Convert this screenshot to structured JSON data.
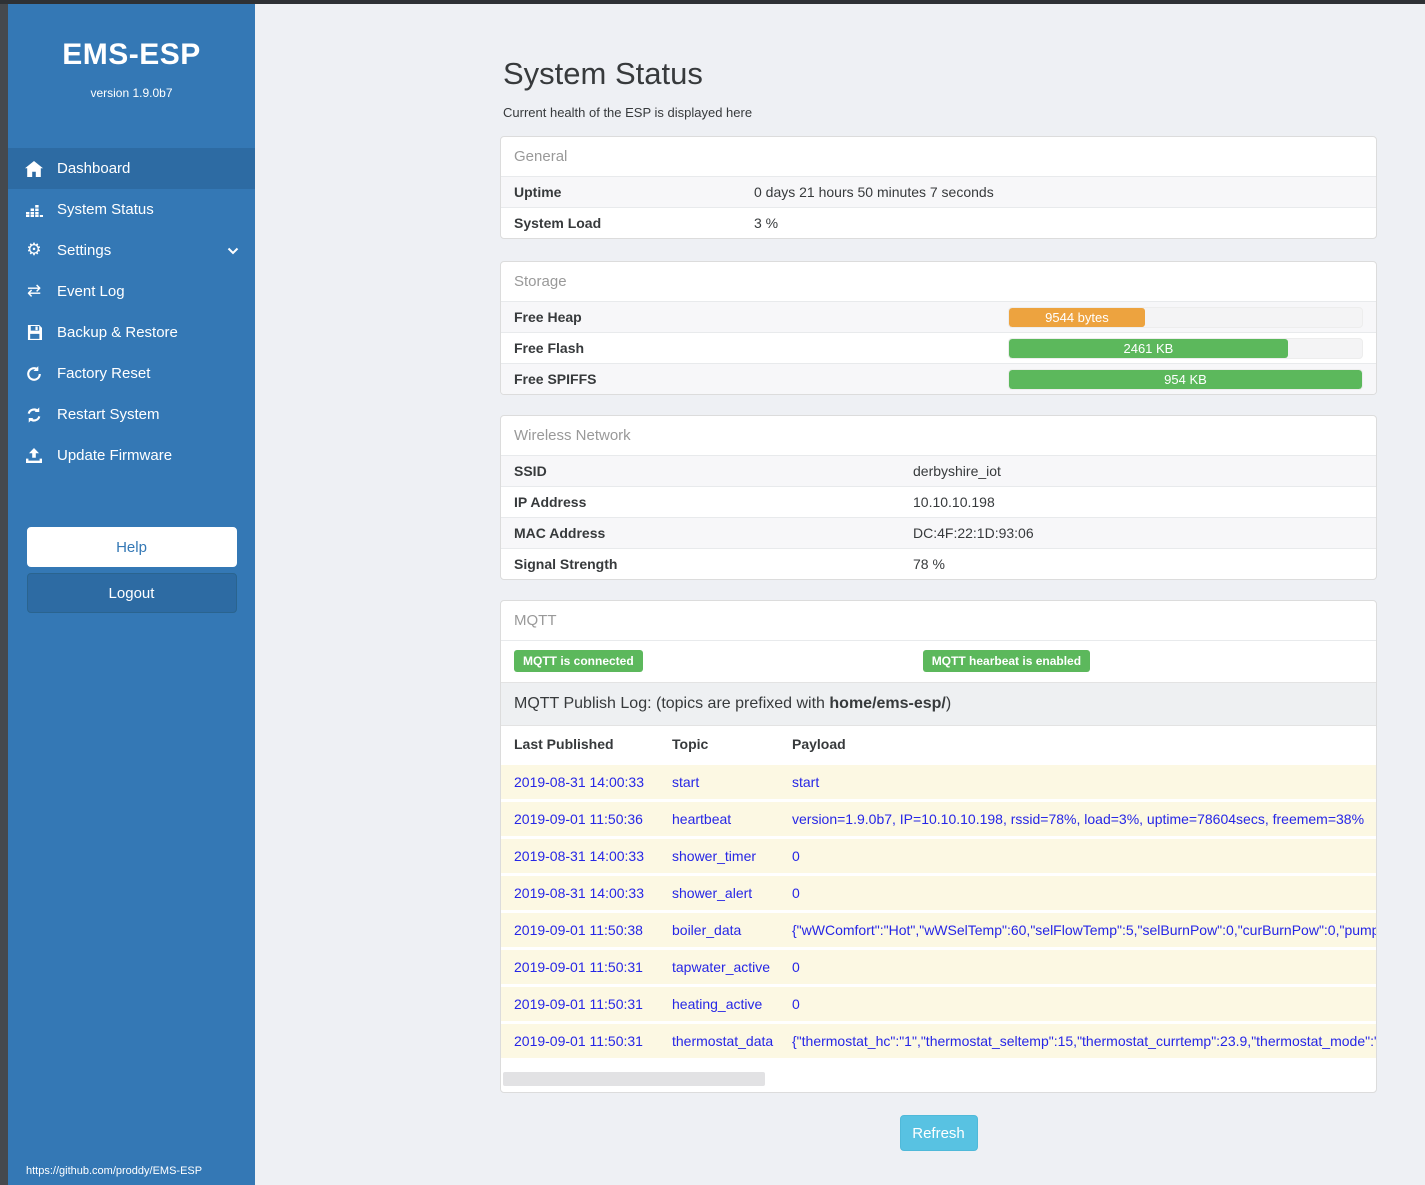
{
  "sidebar": {
    "title": "EMS-ESP",
    "version": "version 1.9.0b7",
    "items": [
      {
        "label": "Dashboard",
        "icon": "home-icon"
      },
      {
        "label": "System Status",
        "icon": "chart-icon"
      },
      {
        "label": "Settings",
        "icon": "gear-icon"
      },
      {
        "label": "Event Log",
        "icon": "exchange-icon"
      },
      {
        "label": "Backup & Restore",
        "icon": "save-icon"
      },
      {
        "label": "Factory Reset",
        "icon": "undo-icon"
      },
      {
        "label": "Restart System",
        "icon": "refresh-icon"
      },
      {
        "label": "Update Firmware",
        "icon": "upload-icon"
      }
    ],
    "help_label": "Help",
    "logout_label": "Logout",
    "footer_link": "https://github.com/proddy/EMS-ESP"
  },
  "page": {
    "title": "System Status",
    "subtitle": "Current health of the ESP is displayed here"
  },
  "general": {
    "header": "General",
    "rows": [
      {
        "label": "Uptime",
        "value": "0 days 21 hours 50 minutes 7 seconds"
      },
      {
        "label": "System Load",
        "value": "3 %"
      }
    ]
  },
  "storage": {
    "header": "Storage",
    "rows": [
      {
        "label": "Free Heap",
        "value": "9544 bytes",
        "percent": 38.5,
        "color": "#eda33f"
      },
      {
        "label": "Free Flash",
        "value": "2461 KB",
        "percent": 79,
        "color": "#5cb85c"
      },
      {
        "label": "Free SPIFFS",
        "value": "954 KB",
        "percent": 100,
        "color": "#5cb85c"
      }
    ]
  },
  "wireless": {
    "header": "Wireless Network",
    "rows": [
      {
        "label": "SSID",
        "value": "derbyshire_iot"
      },
      {
        "label": "IP Address",
        "value": "10.10.10.198"
      },
      {
        "label": "MAC Address",
        "value": "DC:4F:22:1D:93:06"
      },
      {
        "label": "Signal Strength",
        "value": "78 %"
      }
    ]
  },
  "mqtt": {
    "header": "MQTT",
    "badges": [
      {
        "label": "MQTT is connected",
        "color": "#5cb85c"
      },
      {
        "label": "MQTT hearbeat is enabled",
        "color": "#5cb85c"
      }
    ],
    "publish_log": {
      "prefix": "MQTT Publish Log: (topics are prefixed with ",
      "bold": "home/ems-esp/",
      "suffix": ")"
    },
    "table": {
      "headers": [
        "Last Published",
        "Topic",
        "Payload"
      ],
      "rows": [
        {
          "published": "2019-08-31 14:00:33",
          "topic": "start",
          "payload": "start"
        },
        {
          "published": "2019-09-01 11:50:36",
          "topic": "heartbeat",
          "payload": "version=1.9.0b7, IP=10.10.10.198, rssid=78%, load=3%, uptime=78604secs, freemem=38%"
        },
        {
          "published": "2019-08-31 14:00:33",
          "topic": "shower_timer",
          "payload": "0"
        },
        {
          "published": "2019-08-31 14:00:33",
          "topic": "shower_alert",
          "payload": "0"
        },
        {
          "published": "2019-09-01 11:50:38",
          "topic": "boiler_data",
          "payload": "{\"wWComfort\":\"Hot\",\"wWSelTemp\":60,\"selFlowTemp\":5,\"selBurnPow\":0,\"curBurnPow\":0,\"pump"
        },
        {
          "published": "2019-09-01 11:50:31",
          "topic": "tapwater_active",
          "payload": "0"
        },
        {
          "published": "2019-09-01 11:50:31",
          "topic": "heating_active",
          "payload": "0"
        },
        {
          "published": "2019-09-01 11:50:31",
          "topic": "thermostat_data",
          "payload": "{\"thermostat_hc\":\"1\",\"thermostat_seltemp\":15,\"thermostat_currtemp\":23.9,\"thermostat_mode\":\""
        }
      ]
    }
  },
  "refresh_label": "Refresh",
  "colors": {
    "sidebar": "#3478b5",
    "sidebar_active": "#2d6ba3",
    "badge_green": "#5cb85c",
    "bar_orange": "#eda33f",
    "bar_green": "#5cb85c",
    "refresh_blue": "#58c2e2",
    "log_row_bg": "#fcf8e3",
    "log_text_blue": "#2626e6"
  }
}
